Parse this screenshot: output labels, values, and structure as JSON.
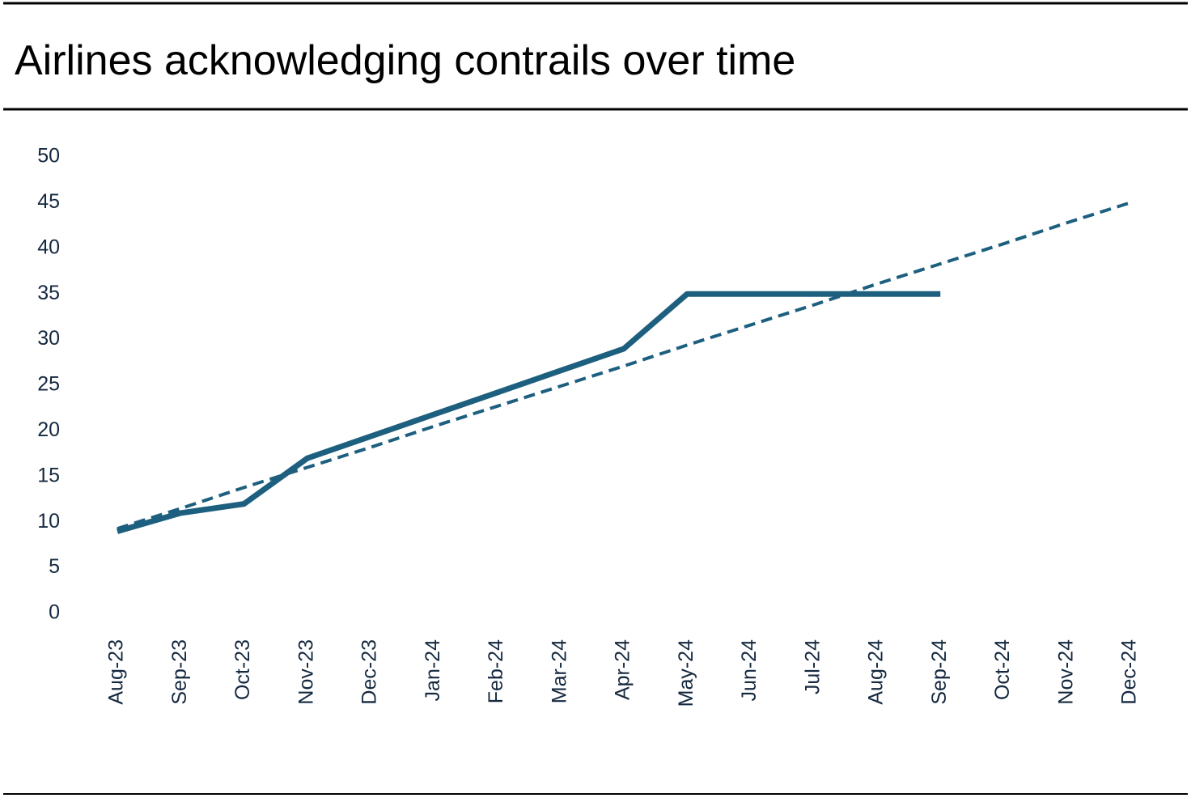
{
  "chart_data": {
    "type": "line",
    "title": "Airlines acknowledging contrails over time",
    "categories": [
      "Aug-23",
      "Sep-23",
      "Oct-23",
      "Nov-23",
      "Dec-23",
      "Jan-24",
      "Feb-24",
      "Mar-24",
      "Apr-24",
      "May-24",
      "Jun-24",
      "Jul-24",
      "Aug-24",
      "Sep-24",
      "Oct-24",
      "Nov-24",
      "Dec-24"
    ],
    "series": [
      {
        "color": "#1d5f7e",
        "dash": false,
        "values": [
          9,
          11,
          12,
          17,
          19.4,
          21.8,
          24.2,
          26.6,
          29,
          35,
          35,
          35,
          35,
          35,
          null,
          null,
          null
        ]
      },
      {
        "color": "#1d5f7e",
        "dash": true,
        "values": [
          9.3,
          11.5,
          13.8,
          16.0,
          18.2,
          20.5,
          22.7,
          24.9,
          27.1,
          29.4,
          31.6,
          33.8,
          36.1,
          38.3,
          40.5,
          42.8,
          45.0
        ]
      }
    ],
    "ylim": [
      0,
      50
    ],
    "yticks": [
      0,
      5,
      10,
      15,
      20,
      25,
      30,
      35,
      40,
      45,
      50
    ],
    "grid": false
  }
}
